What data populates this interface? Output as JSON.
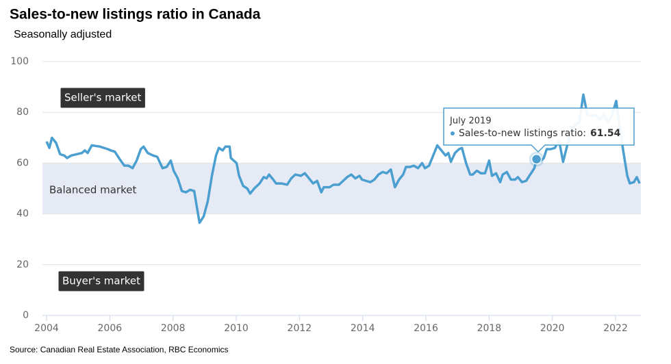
{
  "chart_data": {
    "type": "line",
    "title": "Sales-to-new listings ratio in Canada",
    "subtitle": "Seasonally adjusted",
    "source": "Source: Canadian Real Estate Association, RBC Economics",
    "xlim": [
      2003.87,
      2022.8
    ],
    "xticks": [
      2004,
      2006,
      2008,
      2010,
      2012,
      2014,
      2016,
      2018,
      2020,
      2022
    ],
    "ylim": [
      0,
      100
    ],
    "yticks": [
      0,
      20,
      40,
      60,
      80,
      100
    ],
    "grid": true,
    "annotations": [
      {
        "label": "Seller's market"
      },
      {
        "label": "Balanced market",
        "range": [
          40,
          60
        ],
        "color": "#e6eaf4"
      },
      {
        "label": "Buyer's market"
      }
    ],
    "tooltip": {
      "title": "July 2019",
      "label": "Sales-to-new listings ratio:",
      "value_label": "61.54",
      "x": 2019.5,
      "value": 61.54
    },
    "x": [
      2004.0,
      2004.09,
      2004.17,
      2004.3,
      2004.43,
      2004.56,
      2004.65,
      2004.78,
      2004.95,
      2005.12,
      2005.21,
      2005.3,
      2005.43,
      2005.69,
      2005.94,
      2006.03,
      2006.16,
      2006.29,
      2006.46,
      2006.59,
      2006.72,
      2006.85,
      2006.98,
      2007.07,
      2007.2,
      2007.37,
      2007.5,
      2007.67,
      2007.8,
      2007.93,
      2008.02,
      2008.15,
      2008.28,
      2008.41,
      2008.54,
      2008.67,
      2008.75,
      2008.84,
      2008.97,
      2009.1,
      2009.23,
      2009.36,
      2009.45,
      2009.57,
      2009.66,
      2009.79,
      2009.83,
      2010.01,
      2010.09,
      2010.22,
      2010.35,
      2010.44,
      2010.57,
      2010.74,
      2010.87,
      2010.96,
      2011.04,
      2011.17,
      2011.26,
      2011.43,
      2011.61,
      2011.74,
      2011.87,
      2012.04,
      2012.17,
      2012.3,
      2012.43,
      2012.56,
      2012.69,
      2012.77,
      2012.95,
      2013.08,
      2013.25,
      2013.38,
      2013.51,
      2013.64,
      2013.77,
      2013.9,
      2013.98,
      2014.11,
      2014.24,
      2014.37,
      2014.5,
      2014.63,
      2014.76,
      2014.89,
      2015.02,
      2015.15,
      2015.28,
      2015.37,
      2015.5,
      2015.62,
      2015.75,
      2015.88,
      2015.97,
      2016.1,
      2016.23,
      2016.36,
      2016.49,
      2016.62,
      2016.71,
      2016.79,
      2016.92,
      2017.05,
      2017.14,
      2017.27,
      2017.4,
      2017.48,
      2017.61,
      2017.74,
      2017.87,
      2018.0,
      2018.09,
      2018.22,
      2018.35,
      2018.43,
      2018.56,
      2018.69,
      2018.82,
      2018.91,
      2019.04,
      2019.17,
      2019.3,
      2019.43,
      2019.5,
      2019.6,
      2019.73,
      2019.82,
      2019.95,
      2020.08,
      2020.21,
      2020.34,
      2020.47,
      2020.59,
      2020.72,
      2020.85,
      2020.98,
      2021.11,
      2021.24,
      2021.37,
      2021.5,
      2021.63,
      2021.76,
      2021.89,
      2022.02,
      2022.11,
      2022.24,
      2022.37,
      2022.45,
      2022.58,
      2022.67,
      2022.76
    ],
    "series": [
      {
        "name": "Sales-to-new listings ratio",
        "color": "#4a9fd0",
        "values": [
          68.5,
          66,
          70,
          68,
          63.5,
          63,
          62,
          63,
          63.5,
          64,
          65,
          64,
          67,
          66.5,
          65.5,
          65,
          64.5,
          62,
          59,
          59,
          58,
          61,
          65.5,
          66.5,
          64,
          63,
          62.5,
          58,
          58.5,
          61,
          57,
          54,
          49,
          48.5,
          49.5,
          49,
          43,
          36.5,
          39,
          45,
          55,
          63,
          66,
          65,
          66.5,
          66.5,
          62,
          60,
          55,
          51,
          50,
          48,
          50,
          52,
          54.5,
          54,
          55.5,
          53.5,
          52,
          52,
          51.5,
          54,
          55.5,
          55,
          56,
          54,
          52,
          53,
          48.5,
          50.5,
          50.5,
          51.5,
          51.5,
          53,
          54.5,
          55.5,
          54,
          55,
          53.5,
          53,
          52.5,
          53.5,
          55.5,
          56.5,
          56,
          57.5,
          50.5,
          53.5,
          55.5,
          58.5,
          58.5,
          59,
          58,
          60,
          58,
          59,
          63,
          67,
          65,
          63,
          64,
          60.5,
          64,
          65.5,
          66,
          60,
          55.5,
          55.5,
          57,
          56,
          56,
          61,
          55,
          56,
          52.5,
          55.5,
          56.5,
          53.5,
          53.5,
          54.5,
          52.5,
          53,
          55.5,
          58,
          61.54,
          60.5,
          62,
          65.5,
          65.5,
          66,
          69,
          60.5,
          67,
          73,
          75,
          76,
          87,
          79,
          78.5,
          79,
          77,
          79,
          76,
          79,
          84.5,
          76,
          65,
          55,
          52,
          52.5,
          54.5,
          52
        ]
      }
    ]
  }
}
